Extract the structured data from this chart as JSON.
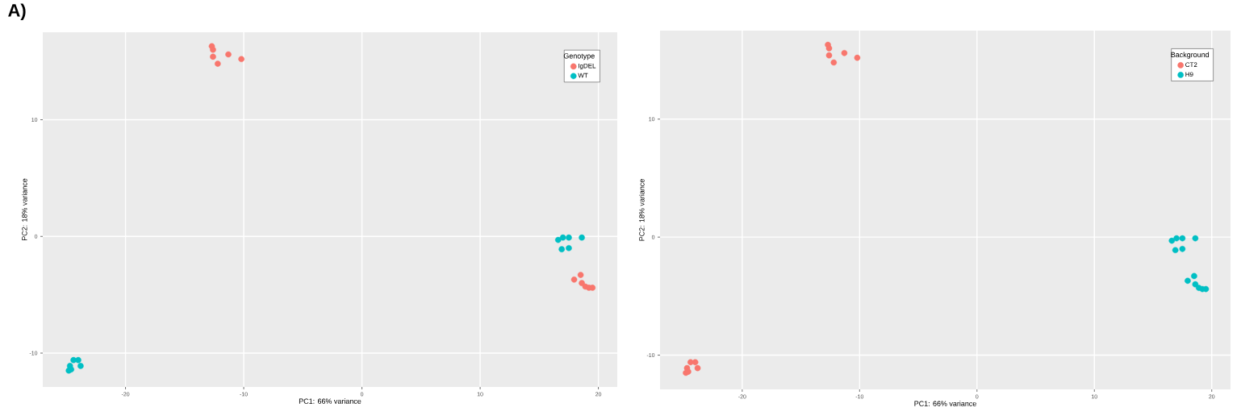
{
  "chart_data": [
    {
      "type": "scatter",
      "annotations": [
        "**A)**"
      ],
      "xlabel": "PC1: 66% variance",
      "ylabel": "PC2: 18% variance",
      "legend_title": "Genotype",
      "legend": "top right",
      "grid": true,
      "marker": "circle",
      "xlim": [
        -27,
        21.6
      ],
      "ylim": [
        -12.9,
        17.5
      ],
      "xticks": [
        -20,
        -10,
        0,
        10,
        20
      ],
      "yticks": [
        -10,
        0,
        10
      ],
      "series": [
        {
          "name": "IgDEL",
          "color": "#F8766D",
          "x": [
            -12.7,
            -12.6,
            -12.6,
            -12.2,
            -11.3,
            -10.2,
            17.95,
            18.5,
            18.6,
            18.9,
            19.2,
            19.5
          ],
          "values": [
            16.3,
            16.0,
            15.4,
            14.8,
            15.6,
            15.2,
            -3.7,
            -3.3,
            -4.0,
            -4.3,
            -4.4,
            -4.4
          ]
        },
        {
          "name": "WT",
          "color": "#00BFC4",
          "x": [
            16.6,
            17.0,
            17.5,
            18.6,
            16.9,
            17.5,
            -24.4,
            -24.0,
            -24.7,
            -23.8,
            -24.8,
            -24.6
          ],
          "values": [
            -0.3,
            -0.1,
            -0.1,
            -0.1,
            -1.1,
            -1.0,
            -10.6,
            -10.6,
            -11.1,
            -11.1,
            -11.5,
            -11.4
          ]
        }
      ]
    },
    {
      "type": "scatter",
      "xlabel": "PC1: 66% variance",
      "ylabel": "PC2: 18% variance",
      "legend_title": "Background",
      "legend": "top right",
      "grid": true,
      "marker": "circle",
      "xlim": [
        -27,
        21.6
      ],
      "ylim": [
        -12.9,
        17.5
      ],
      "xticks": [
        -20,
        -10,
        0,
        10,
        20
      ],
      "yticks": [
        -10,
        0,
        10
      ],
      "series": [
        {
          "name": "CT2",
          "color": "#F8766D",
          "x": [
            -12.7,
            -12.6,
            -12.6,
            -12.2,
            -11.3,
            -10.2,
            -24.4,
            -24.0,
            -24.7,
            -23.8,
            -24.8,
            -24.6
          ],
          "values": [
            16.3,
            16.0,
            15.4,
            14.8,
            15.6,
            15.2,
            -10.6,
            -10.6,
            -11.1,
            -11.1,
            -11.5,
            -11.4
          ]
        },
        {
          "name": "H9",
          "color": "#00BFC4",
          "x": [
            16.6,
            17.0,
            17.5,
            18.6,
            16.9,
            17.5,
            17.95,
            18.5,
            18.6,
            18.9,
            19.2,
            19.5
          ],
          "values": [
            -0.3,
            -0.1,
            -0.1,
            -0.1,
            -1.1,
            -1.0,
            -3.7,
            -3.3,
            -4.0,
            -4.3,
            -4.4,
            -4.4
          ]
        }
      ]
    }
  ]
}
